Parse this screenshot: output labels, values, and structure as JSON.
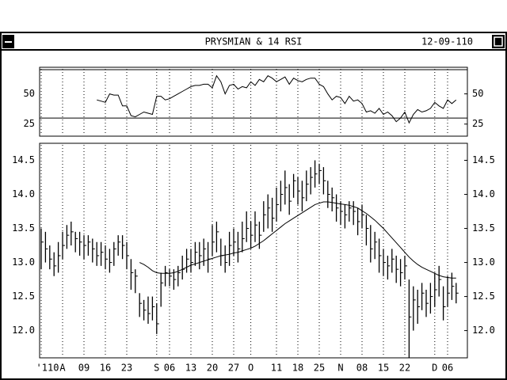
{
  "window": {
    "title": "PRYSMIAN & 14 RSI",
    "date": "12-09-110"
  },
  "chart_data": [
    {
      "type": "line",
      "color": "#000000",
      "ylim": [
        15,
        72
      ],
      "yticks": [
        25,
        50
      ],
      "bands": [
        30,
        70
      ],
      "values": [
        null,
        null,
        null,
        null,
        null,
        null,
        null,
        null,
        null,
        null,
        null,
        null,
        null,
        45,
        44,
        43,
        50,
        49,
        49,
        40,
        40,
        32,
        31,
        33,
        35,
        34,
        33,
        48,
        48,
        45,
        46,
        48,
        50,
        52,
        54,
        56,
        57,
        57,
        58,
        58,
        55,
        65,
        60,
        50,
        57,
        58,
        54,
        56,
        55,
        60,
        57,
        62,
        60,
        65,
        63,
        60,
        62,
        64,
        58,
        63,
        61,
        60,
        62,
        63,
        63,
        58,
        56,
        50,
        45,
        48,
        47,
        42,
        48,
        44,
        45,
        42,
        35,
        36,
        34,
        38,
        33,
        35,
        32,
        27,
        30,
        35,
        26,
        33,
        37,
        35,
        36,
        38,
        43,
        40,
        38,
        45,
        42,
        45
      ]
    },
    {
      "type": "hlc",
      "color": "#000000",
      "ylim": [
        11.6,
        14.75
      ],
      "yticks": [
        {
          "value": 12,
          "label": "12.0"
        },
        12.5,
        {
          "value": 13,
          "label": "13.0"
        },
        13.5,
        {
          "value": 14,
          "label": "14.0"
        },
        14.5
      ],
      "categories": [
        "'110",
        null,
        null,
        null,
        null,
        "A",
        null,
        null,
        null,
        null,
        "09",
        null,
        null,
        null,
        null,
        "16",
        null,
        null,
        null,
        null,
        "23",
        null,
        null,
        null,
        null,
        null,
        null,
        "S",
        null,
        null,
        "06",
        null,
        null,
        null,
        null,
        "13",
        null,
        null,
        null,
        null,
        "20",
        null,
        null,
        null,
        null,
        "27",
        null,
        null,
        null,
        "O",
        null,
        null,
        null,
        null,
        null,
        "11",
        null,
        null,
        null,
        null,
        "18",
        null,
        null,
        null,
        null,
        "25",
        null,
        null,
        null,
        null,
        "N",
        null,
        null,
        null,
        null,
        "08",
        null,
        null,
        null,
        null,
        "15",
        null,
        null,
        null,
        null,
        "22",
        null,
        null,
        null,
        null,
        null,
        null,
        "D",
        null,
        null,
        "06",
        null,
        null
      ],
      "high": [
        13.5,
        13.45,
        13.25,
        13.15,
        13.3,
        13.45,
        13.55,
        13.6,
        13.45,
        13.45,
        13.4,
        13.4,
        13.35,
        13.3,
        13.3,
        13.25,
        13.2,
        13.3,
        13.4,
        13.4,
        13.3,
        13.05,
        12.9,
        12.55,
        12.45,
        12.5,
        12.5,
        12.4,
        12.85,
        12.95,
        12.9,
        12.9,
        12.95,
        13.1,
        13.2,
        13.2,
        13.3,
        13.3,
        13.35,
        13.3,
        13.55,
        13.6,
        13.35,
        13.25,
        13.45,
        13.5,
        13.45,
        13.6,
        13.75,
        13.6,
        13.75,
        13.6,
        13.9,
        14.0,
        13.95,
        14.1,
        14.2,
        14.35,
        14.15,
        14.3,
        14.25,
        14.2,
        14.35,
        14.4,
        14.5,
        14.45,
        14.4,
        14.2,
        14.1,
        14.0,
        13.9,
        13.85,
        13.9,
        13.9,
        13.8,
        13.85,
        13.7,
        13.55,
        13.45,
        13.35,
        13.2,
        13.1,
        13.2,
        13.1,
        13.05,
        13.1,
        12.75,
        12.65,
        12.6,
        12.7,
        12.6,
        12.7,
        12.85,
        12.95,
        12.65,
        12.8,
        12.85,
        12.7
      ],
      "low": [
        12.9,
        13.0,
        12.9,
        12.8,
        12.85,
        13.05,
        13.2,
        13.25,
        13.15,
        13.1,
        13.05,
        13.1,
        13.0,
        12.95,
        12.95,
        12.9,
        12.85,
        12.95,
        13.1,
        13.05,
        12.9,
        12.6,
        12.55,
        12.2,
        12.15,
        12.1,
        12.15,
        11.95,
        12.35,
        12.65,
        12.65,
        12.6,
        12.65,
        12.75,
        12.85,
        12.85,
        12.95,
        12.9,
        12.95,
        12.85,
        13.1,
        13.15,
        12.95,
        12.85,
        12.95,
        13.1,
        13.0,
        13.15,
        13.3,
        13.2,
        13.3,
        13.2,
        13.45,
        13.5,
        13.45,
        13.6,
        13.75,
        13.85,
        13.7,
        13.95,
        13.85,
        13.75,
        13.9,
        14.0,
        14.1,
        14.15,
        14.0,
        13.8,
        13.75,
        13.6,
        13.55,
        13.5,
        13.6,
        13.55,
        13.4,
        13.5,
        13.25,
        13.0,
        13.05,
        12.85,
        12.8,
        12.75,
        12.85,
        12.7,
        12.65,
        12.75,
        11.6,
        12.0,
        12.1,
        12.3,
        12.2,
        12.25,
        12.35,
        12.5,
        12.15,
        12.35,
        12.45,
        12.4
      ],
      "close": [
        13.3,
        13.2,
        13.05,
        12.95,
        13.1,
        13.25,
        13.4,
        13.45,
        13.35,
        13.3,
        13.25,
        13.3,
        13.2,
        13.1,
        13.15,
        13.05,
        13.0,
        13.2,
        13.3,
        13.25,
        13.1,
        12.85,
        12.8,
        12.4,
        12.3,
        12.25,
        12.35,
        12.1,
        12.7,
        12.85,
        12.8,
        12.75,
        12.85,
        12.9,
        13.05,
        13.0,
        13.15,
        13.1,
        13.2,
        13.05,
        13.3,
        13.45,
        13.1,
        13.0,
        13.25,
        13.3,
        13.2,
        13.35,
        13.5,
        13.4,
        13.55,
        13.4,
        13.7,
        13.8,
        13.65,
        13.85,
        14.0,
        14.1,
        13.9,
        14.2,
        14.05,
        13.95,
        14.15,
        14.25,
        14.3,
        14.35,
        14.2,
        14.0,
        13.95,
        13.8,
        13.75,
        13.7,
        13.8,
        13.75,
        13.6,
        13.7,
        13.5,
        13.2,
        13.3,
        13.1,
        13.0,
        12.95,
        13.05,
        12.9,
        12.85,
        12.95,
        12.2,
        12.45,
        12.35,
        12.55,
        12.4,
        12.5,
        12.6,
        12.75,
        12.35,
        12.55,
        12.65,
        12.55
      ],
      "moving_average": [
        null,
        null,
        null,
        null,
        null,
        null,
        null,
        null,
        null,
        null,
        null,
        null,
        null,
        null,
        null,
        null,
        null,
        null,
        null,
        null,
        null,
        null,
        null,
        13.0,
        12.97,
        12.93,
        12.88,
        12.85,
        12.84,
        12.84,
        12.84,
        12.85,
        12.87,
        12.9,
        12.93,
        12.96,
        12.98,
        13.0,
        13.02,
        13.04,
        13.06,
        13.08,
        13.1,
        13.11,
        13.12,
        13.14,
        13.15,
        13.17,
        13.19,
        13.21,
        13.24,
        13.28,
        13.32,
        13.37,
        13.42,
        13.47,
        13.52,
        13.57,
        13.61,
        13.65,
        13.69,
        13.73,
        13.77,
        13.81,
        13.85,
        13.87,
        13.89,
        13.89,
        13.88,
        13.87,
        13.86,
        13.85,
        13.84,
        13.82,
        13.8,
        13.76,
        13.72,
        13.67,
        13.62,
        13.56,
        13.5,
        13.43,
        13.36,
        13.29,
        13.22,
        13.15,
        13.08,
        13.02,
        12.97,
        12.93,
        12.9,
        12.87,
        12.84,
        12.81,
        12.79,
        12.78,
        12.77,
        12.77
      ]
    }
  ]
}
